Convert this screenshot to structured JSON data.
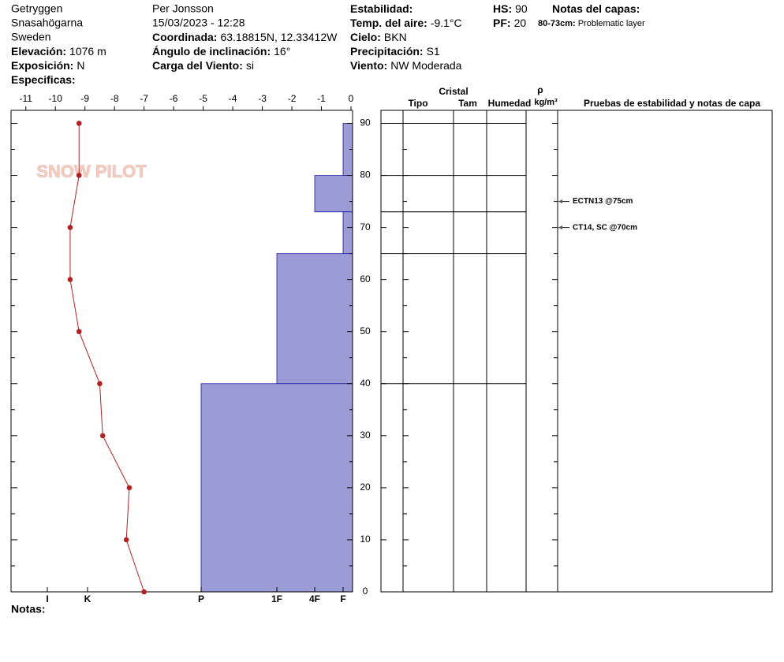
{
  "header": {
    "lines": [
      "Getryggen",
      "Snasahögarna",
      "Sweden",
      "Per Jonsson",
      "15/03/2023 - 12:28"
    ],
    "fields": [
      {
        "label": "Elevación:",
        "value": "1076 m"
      },
      {
        "label": "Exposición:",
        "value": "N"
      },
      {
        "label": "Especificas:"
      },
      {
        "label": "Coordinada:",
        "value": "63.18815N, 12.33412W"
      },
      {
        "label": "Ángulo de inclinación:",
        "value": "16°"
      },
      {
        "label": "Carga del Viento:",
        "value": "si"
      },
      {
        "label": "Estabilidad:"
      },
      {
        "label": "Temp. del aire:",
        "value": "-9.1°C"
      },
      {
        "label": "Cielo:",
        "value": "BKN"
      },
      {
        "label": "Precipitación:",
        "value": "S1"
      },
      {
        "label": "Viento:",
        "value": "NW Moderada"
      },
      {
        "label": "HS:",
        "value": 90
      },
      {
        "label": "PF:",
        "value": 20
      },
      {
        "label": "Notas del capas:"
      }
    ],
    "layer_notes": [
      {
        "label": "80-73cm:",
        "value": "Problematic layer"
      }
    ],
    "notes_label": "Notas:"
  },
  "chart_data": {
    "type": "snow-profile",
    "logo": "SNOW PILOT",
    "xlim": [
      -11.5,
      0
    ],
    "xticks": [
      -11,
      -10,
      -9,
      -8,
      -7,
      -6,
      -5,
      -4,
      -3,
      -2,
      -1,
      0
    ],
    "ylim": [
      0,
      92.5
    ],
    "yticks": [
      0,
      10,
      20,
      30,
      40,
      50,
      60,
      70,
      80,
      90
    ],
    "minor_yticks": [
      5,
      15,
      25,
      35,
      45,
      55,
      65,
      75,
      85
    ],
    "hardness_ticks": [
      "I",
      "K",
      "P",
      "1F",
      "4F",
      "F"
    ],
    "layer_color": "#9b9bd6",
    "temp_color": "#b22222",
    "layers": [
      {
        "top": 90,
        "bottom": 80,
        "hardness": "F"
      },
      {
        "top": 80,
        "bottom": 73,
        "hardness": "4F"
      },
      {
        "top": 73,
        "bottom": 65,
        "hardness": "F"
      },
      {
        "top": 65,
        "bottom": 40,
        "hardness": "1F"
      },
      {
        "top": 40,
        "bottom": 0,
        "hardness": "P"
      }
    ],
    "temperatures": {
      "depth": [
        90,
        80,
        70,
        60,
        50,
        40,
        30,
        20,
        10,
        0
      ],
      "temp": [
        -9.2,
        -9.2,
        -9.5,
        -9.5,
        -9.2,
        -8.5,
        -8.4,
        -7.5,
        -7.6,
        -7.0
      ]
    },
    "table_headers": {
      "group": "Cristal",
      "columns": [
        "Tipo",
        "Tam",
        "Humedad"
      ],
      "density": "ρ",
      "density_unit": "kg/m³",
      "tests": "Pruebas de estabilidad y notas de capa"
    },
    "tests": [
      {
        "depth": 75,
        "label": "ECTN13 @75cm"
      },
      {
        "depth": 70,
        "label": "CT14, SC @70cm"
      }
    ]
  }
}
